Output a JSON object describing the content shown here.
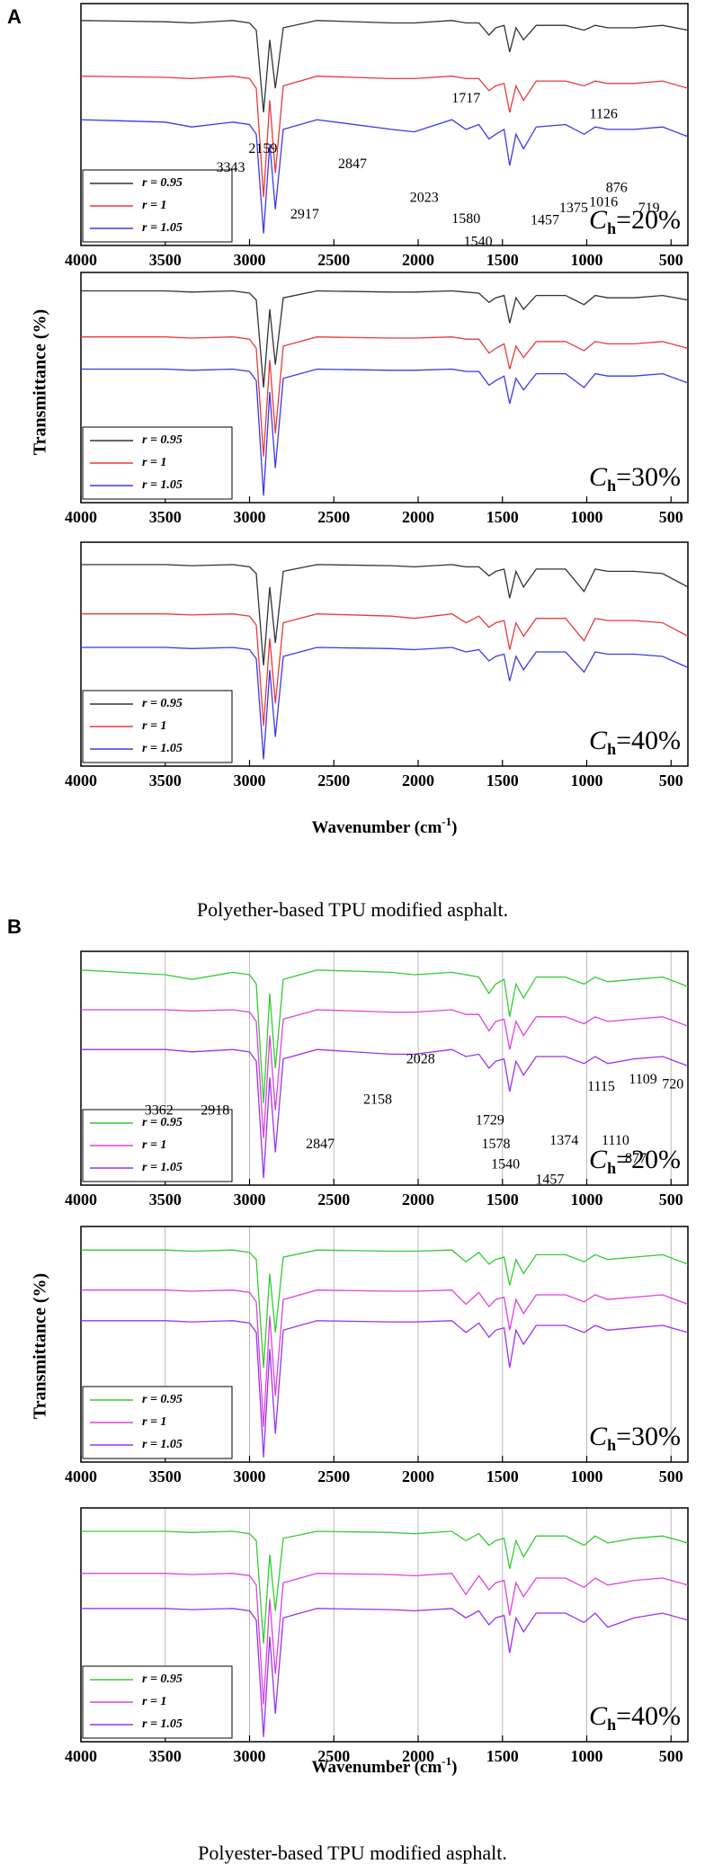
{
  "figures": [
    {
      "label": "A",
      "y_label": "Transmittance (%)",
      "x_label": {
        "text": "Wavenumber (cm",
        "sup": "-1",
        "end": ")"
      },
      "caption": "Polyether-based TPU modified asphalt."
    },
    {
      "label": "B",
      "y_label": "Transmittance (%)",
      "x_label": {
        "text": "Wavenumber (cm",
        "sup": "-1",
        "end": ")"
      },
      "caption": "Polyester-based TPU modified asphalt."
    }
  ],
  "chart_data": [
    {
      "type": "line",
      "x": [
        4000,
        3500,
        3343,
        3100,
        3000,
        2960,
        2917,
        2880,
        2847,
        2800,
        2600,
        2159,
        2023,
        1800,
        1717,
        1640,
        1580,
        1540,
        1490,
        1457,
        1420,
        1375,
        1300,
        1126,
        1016,
        950,
        876,
        719,
        550,
        400
      ],
      "xlim": [
        4000,
        400
      ],
      "xticks": [
        4000,
        3500,
        3000,
        2500,
        2000,
        1500,
        1000,
        500
      ],
      "ylim": [
        0,
        100
      ],
      "grid": false,
      "series": [
        {
          "name": "r = 0.95",
          "color": "#333333",
          "values": [
            93,
            92.5,
            92,
            93,
            92,
            89,
            55,
            85,
            65,
            90,
            93,
            92,
            92,
            93,
            92,
            92,
            87,
            90,
            91,
            80,
            90,
            85,
            91,
            91,
            89,
            91,
            90,
            90,
            91,
            89
          ]
        },
        {
          "name": "r = 1",
          "color": "#e83a3a",
          "values": [
            70,
            69.5,
            69,
            70,
            69,
            65,
            20,
            60,
            30,
            66,
            70,
            69,
            69,
            70,
            69,
            69,
            64,
            66,
            67,
            55,
            66,
            60,
            68,
            68,
            66,
            68,
            67,
            67,
            68,
            65
          ]
        },
        {
          "name": "r = 1.05",
          "color": "#3a3ae8",
          "values": [
            52,
            51,
            49,
            51,
            50,
            46,
            5,
            42,
            15,
            48,
            52,
            48,
            47,
            52,
            48,
            50,
            44,
            46,
            48,
            33,
            46,
            40,
            49,
            50,
            46,
            49,
            48,
            48,
            49,
            45
          ]
        }
      ],
      "panel_label": {
        "symbol": "C",
        "sub": "h",
        "text": "=20%"
      },
      "annotations": [
        "1717",
        "1126",
        "3343",
        "2847",
        "2159",
        "2023",
        "1580",
        "1540",
        "1457",
        "1375",
        "1016",
        "876",
        "719",
        "2917"
      ]
    },
    {
      "type": "line",
      "x": [
        4000,
        3500,
        3343,
        3100,
        3000,
        2960,
        2917,
        2880,
        2847,
        2800,
        2600,
        2159,
        2023,
        1800,
        1717,
        1640,
        1580,
        1540,
        1490,
        1457,
        1420,
        1375,
        1300,
        1126,
        1016,
        950,
        876,
        719,
        550,
        400
      ],
      "xlim": [
        4000,
        400
      ],
      "xticks": [
        4000,
        3500,
        3000,
        2500,
        2000,
        1500,
        1000,
        500
      ],
      "ylim": [
        0,
        100
      ],
      "grid": false,
      "series": [
        {
          "name": "r = 0.95",
          "color": "#333333",
          "values": [
            92,
            92,
            91.5,
            92,
            91,
            88,
            50,
            84,
            60,
            89,
            92,
            91.5,
            91.5,
            92,
            91.5,
            91,
            87,
            89,
            90,
            78,
            89,
            84,
            90,
            90,
            86,
            90,
            89,
            89,
            90,
            88
          ]
        },
        {
          "name": "r = 1",
          "color": "#e83a3a",
          "values": [
            72,
            72,
            71.5,
            72,
            71,
            67,
            20,
            62,
            30,
            68,
            72,
            71.5,
            71.5,
            72,
            71,
            71,
            65,
            67,
            69,
            58,
            68,
            63,
            70,
            70,
            66,
            70,
            69,
            69,
            70,
            67
          ]
        },
        {
          "name": "r = 1.05",
          "color": "#3a3ae8",
          "values": [
            58,
            58,
            57.5,
            58,
            57,
            53,
            3,
            48,
            15,
            54,
            58,
            57.5,
            57.5,
            58,
            57,
            57,
            51,
            53,
            55,
            43,
            54,
            49,
            56,
            56,
            50,
            56,
            55,
            55,
            56,
            52
          ]
        }
      ],
      "panel_label": {
        "symbol": "C",
        "sub": "h",
        "text": "=30%"
      },
      "annotations": []
    },
    {
      "type": "line",
      "x": [
        4000,
        3500,
        3343,
        3100,
        3000,
        2960,
        2917,
        2880,
        2847,
        2800,
        2600,
        2159,
        2023,
        1800,
        1717,
        1640,
        1580,
        1540,
        1490,
        1457,
        1420,
        1375,
        1300,
        1126,
        1016,
        950,
        876,
        719,
        550,
        400
      ],
      "xlim": [
        4000,
        400
      ],
      "xticks": [
        4000,
        3500,
        3000,
        2500,
        2000,
        1500,
        1000,
        500
      ],
      "ylim": [
        0,
        100
      ],
      "grid": false,
      "series": [
        {
          "name": "r = 0.95",
          "color": "#333333",
          "values": [
            90,
            90,
            89.5,
            90,
            89,
            86,
            45,
            80,
            55,
            87,
            90,
            89.5,
            89,
            90,
            89,
            89,
            85,
            87,
            88,
            75,
            87,
            80,
            88,
            88,
            78,
            88,
            87,
            87,
            86,
            80
          ]
        },
        {
          "name": "r = 1",
          "color": "#e83a3a",
          "values": [
            68,
            68,
            67.5,
            68,
            67,
            63,
            18,
            57,
            28,
            64,
            68,
            67,
            66,
            68,
            64,
            67,
            62,
            64,
            65,
            52,
            64,
            58,
            66,
            66,
            56,
            66,
            65,
            65,
            64,
            58
          ]
        },
        {
          "name": "r = 1.05",
          "color": "#3a3ae8",
          "values": [
            53,
            53,
            52.5,
            53,
            52,
            48,
            3,
            43,
            13,
            49,
            53,
            52.5,
            52,
            53,
            51,
            52,
            47,
            49,
            50,
            38,
            49,
            43,
            51,
            51,
            42,
            51,
            50,
            50,
            49,
            44
          ]
        }
      ],
      "panel_label": {
        "symbol": "C",
        "sub": "h",
        "text": "=40%"
      },
      "annotations": []
    },
    {
      "type": "line",
      "x": [
        4000,
        3500,
        3343,
        3100,
        3000,
        2960,
        2917,
        2880,
        2847,
        2800,
        2600,
        2159,
        2023,
        1800,
        1717,
        1640,
        1580,
        1540,
        1490,
        1457,
        1420,
        1375,
        1300,
        1126,
        1016,
        950,
        876,
        719,
        550,
        400
      ],
      "xlim": [
        4000,
        400
      ],
      "xticks": [
        4000,
        3500,
        3000,
        2500,
        2000,
        1500,
        1000,
        500
      ],
      "ylim": [
        0,
        100
      ],
      "grid": true,
      "series": [
        {
          "name": "r = 0.95",
          "color": "#33cc33",
          "values": [
            92,
            90,
            88,
            91,
            90,
            86,
            35,
            82,
            50,
            88,
            92,
            91,
            90,
            91,
            90,
            89,
            82,
            86,
            88,
            72,
            86,
            80,
            89,
            89,
            86,
            89,
            87,
            88,
            89,
            85
          ]
        },
        {
          "name": "r = 1",
          "color": "#e040e0",
          "values": [
            75,
            75,
            74.5,
            75,
            74,
            70,
            20,
            64,
            32,
            71,
            75,
            74,
            74,
            75,
            73,
            73,
            66,
            70,
            71,
            58,
            70,
            64,
            72,
            72,
            69,
            72,
            70,
            71,
            72,
            68
          ]
        },
        {
          "name": "r = 1.05",
          "color": "#9933ee",
          "values": [
            58,
            58,
            57,
            58,
            57,
            53,
            3,
            46,
            14,
            54,
            58,
            56,
            56,
            58,
            55,
            56,
            50,
            53,
            54,
            40,
            53,
            47,
            55,
            55,
            52,
            55,
            52,
            54,
            55,
            51
          ]
        }
      ],
      "panel_label": {
        "symbol": "C",
        "sub": "h",
        "text": "=20%"
      },
      "annotations": [
        "2028",
        "3362",
        "2918",
        "2158",
        "1729",
        "1115",
        "1109",
        "720",
        "1578",
        "1540",
        "1374",
        "1110",
        "877",
        "2847",
        "1457"
      ]
    },
    {
      "type": "line",
      "x": [
        4000,
        3500,
        3343,
        3100,
        3000,
        2960,
        2917,
        2880,
        2847,
        2800,
        2600,
        2159,
        2023,
        1800,
        1717,
        1640,
        1580,
        1540,
        1490,
        1457,
        1420,
        1375,
        1300,
        1126,
        1016,
        950,
        876,
        719,
        550,
        400
      ],
      "xlim": [
        4000,
        400
      ],
      "xticks": [
        4000,
        3500,
        3000,
        2500,
        2000,
        1500,
        1000,
        500
      ],
      "ylim": [
        0,
        100
      ],
      "grid": true,
      "series": [
        {
          "name": "r = 0.95",
          "color": "#33cc33",
          "values": [
            90,
            90,
            89.5,
            90,
            89,
            86,
            40,
            80,
            55,
            87,
            90,
            89.5,
            89.5,
            90,
            85,
            89,
            84,
            86,
            87,
            75,
            86,
            80,
            88,
            88,
            85,
            88,
            86,
            87,
            88,
            84
          ]
        },
        {
          "name": "r = 1",
          "color": "#e040e0",
          "values": [
            73,
            73,
            72.5,
            73,
            72,
            68,
            15,
            62,
            28,
            69,
            73,
            72.5,
            72.5,
            73,
            67,
            72,
            66,
            69,
            70,
            56,
            69,
            63,
            71,
            71,
            68,
            71,
            69,
            70,
            71,
            67
          ]
        },
        {
          "name": "r = 1.05",
          "color": "#9933ee",
          "values": [
            60,
            60,
            59.5,
            60,
            59,
            55,
            2,
            48,
            12,
            56,
            60,
            59.5,
            59.5,
            60,
            55,
            59,
            53,
            56,
            57,
            40,
            56,
            50,
            58,
            58,
            55,
            58,
            56,
            57,
            58,
            55
          ]
        }
      ],
      "panel_label": {
        "symbol": "C",
        "sub": "h",
        "text": "=30%"
      },
      "annotations": []
    },
    {
      "type": "line",
      "x": [
        4000,
        3500,
        3343,
        3100,
        3000,
        2960,
        2917,
        2880,
        2847,
        2800,
        2600,
        2159,
        2023,
        1800,
        1717,
        1640,
        1580,
        1540,
        1490,
        1457,
        1420,
        1375,
        1300,
        1126,
        1016,
        950,
        876,
        719,
        550,
        400
      ],
      "xlim": [
        4000,
        400
      ],
      "xticks": [
        4000,
        3500,
        3000,
        2500,
        2000,
        1500,
        1000,
        500
      ],
      "ylim": [
        0,
        100
      ],
      "grid": true,
      "series": [
        {
          "name": "r = 0.95",
          "color": "#33cc33",
          "values": [
            90,
            90,
            89.5,
            90,
            89,
            86,
            42,
            80,
            56,
            87,
            90,
            89.5,
            89,
            90,
            86,
            89,
            84,
            86,
            87,
            74,
            86,
            79,
            88,
            88,
            84,
            88,
            85,
            87,
            88,
            85
          ]
        },
        {
          "name": "r = 1",
          "color": "#e040e0",
          "values": [
            72,
            72,
            71.5,
            72,
            71,
            67,
            16,
            61,
            29,
            68,
            72,
            71.5,
            71,
            72,
            63,
            71,
            65,
            68,
            69,
            54,
            68,
            62,
            70,
            70,
            66,
            70,
            67,
            69,
            70,
            67
          ]
        },
        {
          "name": "r = 1.05",
          "color": "#9933ee",
          "values": [
            57,
            57,
            56.5,
            57,
            56,
            52,
            2,
            45,
            12,
            53,
            57,
            56.5,
            56,
            57,
            53,
            56,
            50,
            53,
            54,
            38,
            53,
            47,
            55,
            55,
            51,
            55,
            49,
            53,
            55,
            52
          ]
        }
      ],
      "panel_label": {
        "symbol": "C",
        "sub": "h",
        "text": "=40%"
      },
      "annotations": []
    }
  ]
}
